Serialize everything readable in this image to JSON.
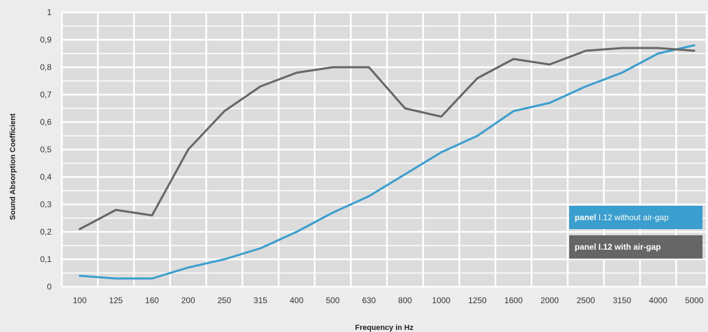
{
  "chart_data": {
    "type": "line",
    "title": "",
    "xlabel": "Frequency in Hz",
    "ylabel": "Sound Absorption Coefficient",
    "ylim": [
      0,
      1
    ],
    "yticks": [
      "0",
      "0,1",
      "0,2",
      "0,3",
      "0,4",
      "0,5",
      "0,6",
      "0,7",
      "0,8",
      "0,9",
      "1"
    ],
    "categories": [
      "100",
      "125",
      "160",
      "200",
      "250",
      "315",
      "400",
      "500",
      "630",
      "800",
      "1000",
      "1250",
      "1600",
      "2000",
      "2500",
      "3150",
      "4000",
      "5000"
    ],
    "grid": true,
    "legend_position": "right",
    "series": [
      {
        "name_bold": "panel",
        "name_rest": "I.12 without air-gap",
        "color": "#3a9fcf",
        "values": [
          0.04,
          0.03,
          0.03,
          0.07,
          0.1,
          0.14,
          0.2,
          0.27,
          0.33,
          0.41,
          0.49,
          0.55,
          0.64,
          0.67,
          0.73,
          0.78,
          0.85,
          0.88
        ]
      },
      {
        "name_bold": "panel I.12 with air-gap",
        "name_rest": "",
        "color": "#666666",
        "values": [
          0.21,
          0.28,
          0.26,
          0.5,
          0.64,
          0.73,
          0.78,
          0.8,
          0.8,
          0.65,
          0.62,
          0.76,
          0.83,
          0.81,
          0.86,
          0.87,
          0.87,
          0.86
        ]
      }
    ]
  }
}
